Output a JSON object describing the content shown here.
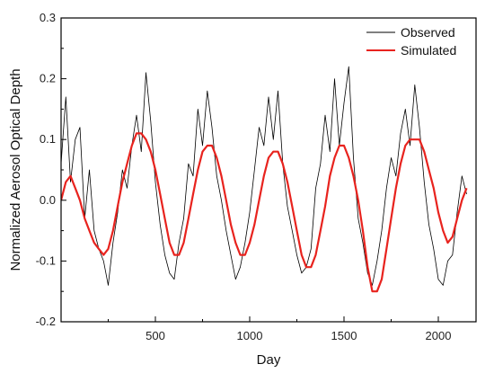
{
  "chart_data": {
    "type": "line",
    "xlabel": "Day",
    "ylabel": "Normalized Aerosol Optical Depth",
    "xlim": [
      0,
      2200
    ],
    "ylim": [
      -0.2,
      0.3
    ],
    "xticks": [
      500,
      1000,
      1500,
      2000
    ],
    "yticks": [
      -0.2,
      -0.1,
      0.0,
      0.1,
      0.2,
      0.3
    ],
    "xtick_labels": [
      "500",
      "1000",
      "1500",
      "2000"
    ],
    "ytick_labels": [
      "-0.2",
      "-0.1",
      "0.0",
      "0.1",
      "0.2",
      "0.3"
    ],
    "grid": false,
    "legend_position": "top-right",
    "series": [
      {
        "name": "Observed",
        "color": "#000000",
        "x": [
          0,
          25,
          50,
          75,
          100,
          125,
          150,
          175,
          200,
          225,
          250,
          275,
          300,
          325,
          350,
          375,
          400,
          425,
          450,
          475,
          500,
          525,
          550,
          575,
          600,
          625,
          650,
          675,
          700,
          725,
          750,
          775,
          800,
          825,
          850,
          875,
          900,
          925,
          950,
          975,
          1000,
          1025,
          1050,
          1075,
          1100,
          1125,
          1150,
          1175,
          1200,
          1225,
          1250,
          1275,
          1300,
          1325,
          1350,
          1375,
          1400,
          1425,
          1450,
          1475,
          1500,
          1525,
          1550,
          1575,
          1600,
          1625,
          1650,
          1675,
          1700,
          1725,
          1750,
          1775,
          1800,
          1825,
          1850,
          1875,
          1900,
          1925,
          1950,
          1975,
          2000,
          2025,
          2050,
          2075,
          2100,
          2125,
          2150
        ],
        "y": [
          0.06,
          0.17,
          0.03,
          0.1,
          0.12,
          -0.03,
          0.05,
          -0.05,
          -0.08,
          -0.1,
          -0.14,
          -0.07,
          -0.02,
          0.05,
          0.02,
          0.09,
          0.14,
          0.08,
          0.21,
          0.13,
          0.03,
          -0.04,
          -0.09,
          -0.12,
          -0.13,
          -0.07,
          -0.03,
          0.06,
          0.04,
          0.15,
          0.09,
          0.18,
          0.12,
          0.04,
          0.0,
          -0.05,
          -0.09,
          -0.13,
          -0.11,
          -0.07,
          -0.02,
          0.05,
          0.12,
          0.09,
          0.17,
          0.1,
          0.18,
          0.06,
          -0.01,
          -0.05,
          -0.09,
          -0.12,
          -0.11,
          -0.08,
          0.02,
          0.06,
          0.14,
          0.08,
          0.2,
          0.09,
          0.16,
          0.22,
          0.07,
          -0.03,
          -0.07,
          -0.12,
          -0.14,
          -0.1,
          -0.05,
          0.02,
          0.07,
          0.04,
          0.11,
          0.15,
          0.09,
          0.19,
          0.12,
          0.03,
          -0.04,
          -0.08,
          -0.13,
          -0.14,
          -0.1,
          -0.09,
          -0.02,
          0.04,
          0.01
        ]
      },
      {
        "name": "Simulated",
        "color": "#e8231e",
        "x": [
          0,
          25,
          50,
          75,
          100,
          125,
          150,
          175,
          200,
          225,
          250,
          275,
          300,
          325,
          350,
          375,
          400,
          425,
          450,
          475,
          500,
          525,
          550,
          575,
          600,
          625,
          650,
          675,
          700,
          725,
          750,
          775,
          800,
          825,
          850,
          875,
          900,
          925,
          950,
          975,
          1000,
          1025,
          1050,
          1075,
          1100,
          1125,
          1150,
          1175,
          1200,
          1225,
          1250,
          1275,
          1300,
          1325,
          1350,
          1375,
          1400,
          1425,
          1450,
          1475,
          1500,
          1525,
          1550,
          1575,
          1600,
          1625,
          1650,
          1675,
          1700,
          1725,
          1750,
          1775,
          1800,
          1825,
          1850,
          1875,
          1900,
          1925,
          1950,
          1975,
          2000,
          2025,
          2050,
          2075,
          2100,
          2125,
          2150
        ],
        "y": [
          0.0,
          0.03,
          0.04,
          0.02,
          0.0,
          -0.03,
          -0.05,
          -0.07,
          -0.08,
          -0.09,
          -0.08,
          -0.05,
          -0.01,
          0.03,
          0.06,
          0.09,
          0.11,
          0.11,
          0.1,
          0.08,
          0.05,
          0.01,
          -0.03,
          -0.07,
          -0.09,
          -0.09,
          -0.07,
          -0.03,
          0.01,
          0.05,
          0.08,
          0.09,
          0.09,
          0.07,
          0.04,
          0.0,
          -0.04,
          -0.07,
          -0.09,
          -0.09,
          -0.07,
          -0.04,
          0.0,
          0.04,
          0.07,
          0.08,
          0.08,
          0.06,
          0.03,
          -0.01,
          -0.05,
          -0.09,
          -0.11,
          -0.11,
          -0.09,
          -0.05,
          -0.01,
          0.04,
          0.07,
          0.09,
          0.09,
          0.07,
          0.04,
          0.0,
          -0.05,
          -0.11,
          -0.15,
          -0.15,
          -0.13,
          -0.08,
          -0.03,
          0.02,
          0.06,
          0.09,
          0.1,
          0.1,
          0.1,
          0.08,
          0.05,
          0.02,
          -0.02,
          -0.05,
          -0.07,
          -0.06,
          -0.03,
          0.0,
          0.02
        ]
      }
    ]
  }
}
